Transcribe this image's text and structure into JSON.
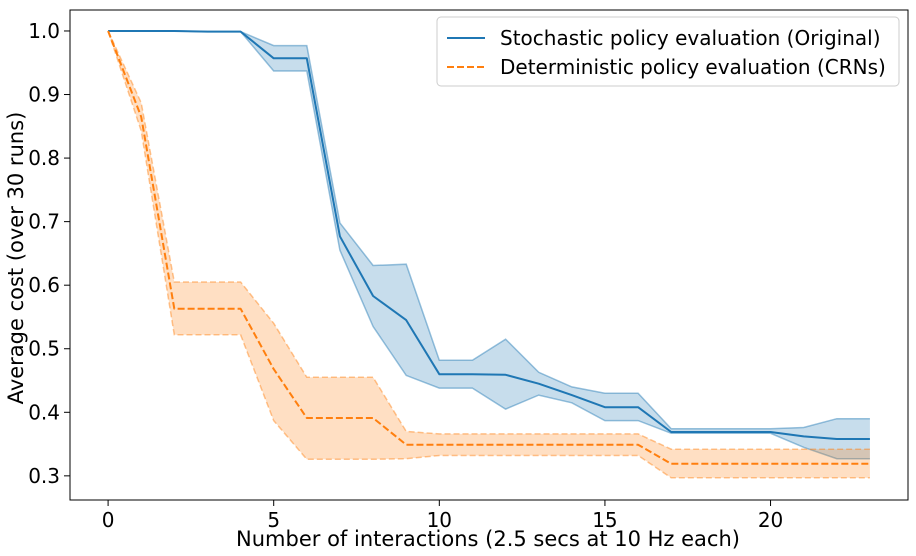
{
  "chart_data": {
    "type": "line",
    "xlabel": "Number of interactions (2.5 secs at 10 Hz each)",
    "ylabel": "Average cost (over 30 runs)",
    "xlim": [
      -1.15,
      24.15
    ],
    "ylim": [
      0.262,
      1.033
    ],
    "xticks": [
      0,
      5,
      10,
      15,
      20
    ],
    "yticks": [
      0.3,
      0.4,
      0.5,
      0.6,
      0.7,
      0.8,
      0.9,
      1.0
    ],
    "legend_position": "top-right",
    "x": [
      0,
      1,
      2,
      3,
      4,
      5,
      6,
      7,
      8,
      9,
      10,
      11,
      12,
      13,
      14,
      15,
      16,
      17,
      18,
      19,
      20,
      21,
      22,
      23
    ],
    "series": [
      {
        "name": "Stochastic policy evaluation (Original)",
        "color": "#1f77b4",
        "style": "solid",
        "values": [
          1.0,
          1.0,
          1.0,
          0.999,
          0.999,
          0.957,
          0.957,
          0.677,
          0.583,
          0.545,
          0.46,
          0.46,
          0.459,
          0.445,
          0.427,
          0.408,
          0.408,
          0.369,
          0.369,
          0.369,
          0.369,
          0.362,
          0.358,
          0.358
        ],
        "lower": [
          1.0,
          1.0,
          1.0,
          0.999,
          0.999,
          0.937,
          0.937,
          0.655,
          0.535,
          0.458,
          0.438,
          0.438,
          0.405,
          0.427,
          0.415,
          0.387,
          0.387,
          0.367,
          0.367,
          0.367,
          0.367,
          0.345,
          0.327,
          0.327
        ],
        "upper": [
          1.0,
          1.0,
          1.0,
          0.999,
          0.999,
          0.977,
          0.977,
          0.698,
          0.631,
          0.633,
          0.482,
          0.482,
          0.515,
          0.463,
          0.44,
          0.43,
          0.43,
          0.374,
          0.374,
          0.374,
          0.374,
          0.376,
          0.39,
          0.39
        ]
      },
      {
        "name": "Deterministic policy evaluation (CRNs)",
        "color": "#ff7f0e",
        "style": "dashed",
        "values": [
          1.0,
          0.865,
          0.563,
          0.563,
          0.563,
          0.468,
          0.391,
          0.391,
          0.391,
          0.349,
          0.349,
          0.349,
          0.349,
          0.349,
          0.349,
          0.349,
          0.349,
          0.319,
          0.319,
          0.319,
          0.319,
          0.319,
          0.319,
          0.319
        ],
        "lower": [
          1.0,
          0.843,
          0.522,
          0.522,
          0.522,
          0.387,
          0.326,
          0.326,
          0.326,
          0.327,
          0.332,
          0.332,
          0.332,
          0.332,
          0.332,
          0.332,
          0.332,
          0.297,
          0.297,
          0.297,
          0.297,
          0.297,
          0.297,
          0.297
        ],
        "upper": [
          1.0,
          0.887,
          0.605,
          0.605,
          0.605,
          0.54,
          0.455,
          0.455,
          0.455,
          0.37,
          0.366,
          0.366,
          0.366,
          0.366,
          0.366,
          0.366,
          0.366,
          0.342,
          0.342,
          0.342,
          0.342,
          0.342,
          0.342,
          0.342
        ]
      }
    ]
  }
}
